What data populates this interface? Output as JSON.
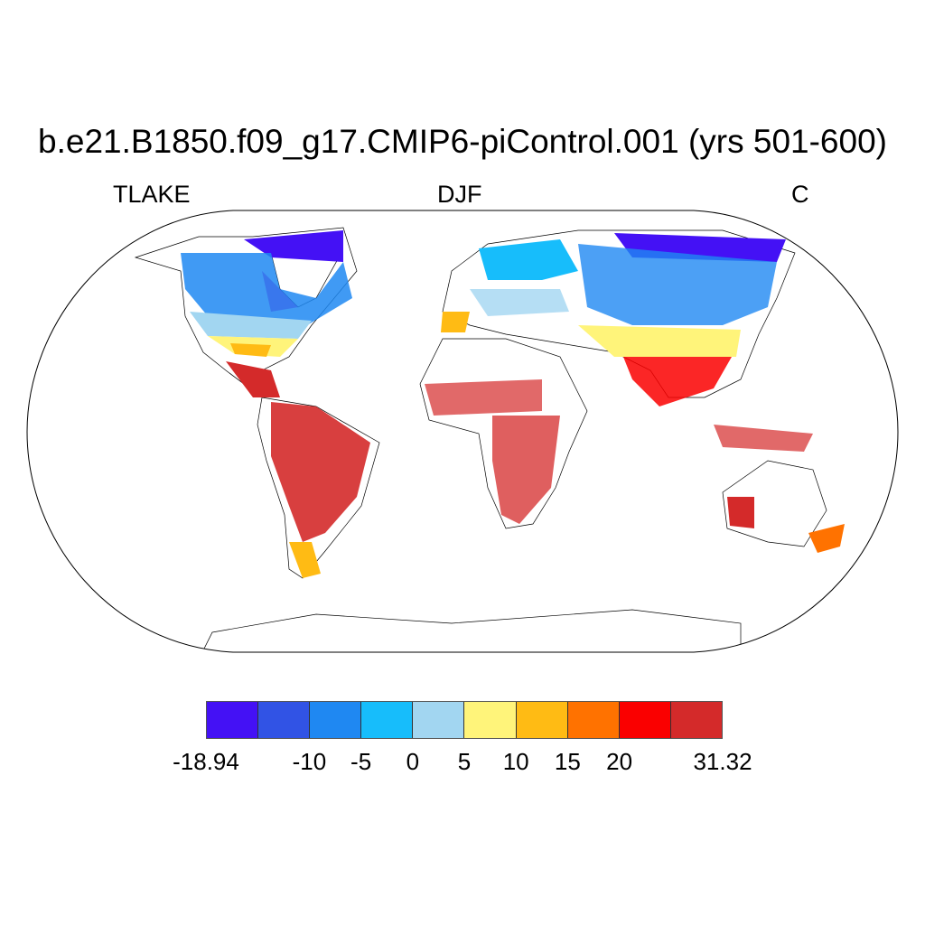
{
  "title": "b.e21.B1850.f09_g17.CMIP6-piControl.001 (yrs 501-600)",
  "left_label": "TLAKE",
  "center_label": "DJF",
  "right_label": "C",
  "colorbar": {
    "colors": [
      "#4411f5",
      "#3153e5",
      "#1f88f2",
      "#17bdfb",
      "#a2d6f1",
      "#fff47a",
      "#ffbb14",
      "#ff7200",
      "#fa0000",
      "#d42a2a"
    ],
    "labels": [
      "-18.94",
      "-10",
      "-5",
      "0",
      "5",
      "10",
      "15",
      "20",
      "31.32"
    ],
    "label_values": [
      -18.94,
      -10,
      -5,
      0,
      5,
      10,
      15,
      20,
      31.32
    ],
    "min": -18.94,
    "max": 31.32
  }
}
